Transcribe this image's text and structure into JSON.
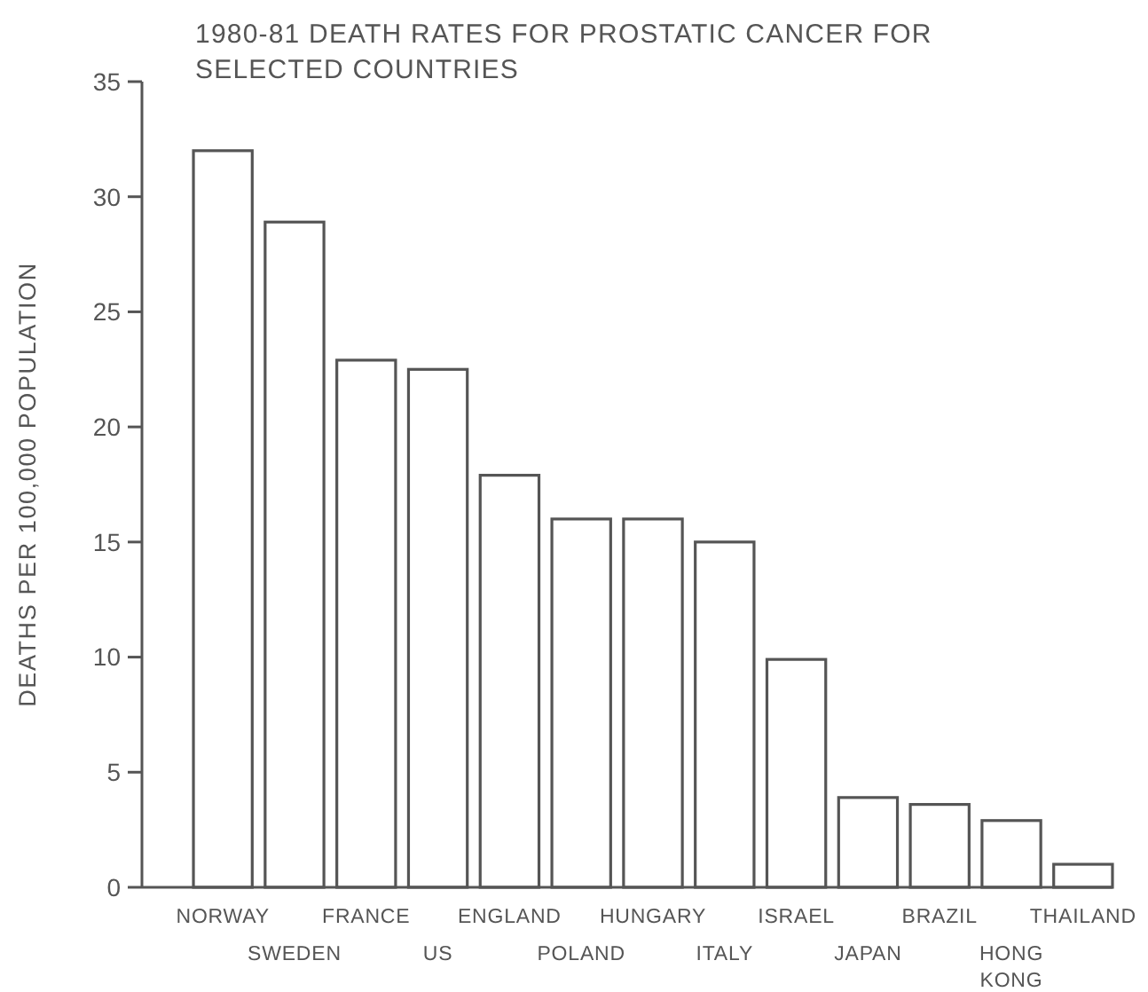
{
  "chart_data": {
    "type": "bar",
    "title": "1980-81 DEATH RATES FOR PROSTATIC CANCER FOR SELECTED COUNTRIES",
    "ylabel": "DEATHS PER 100,000 POPULATION",
    "categories": [
      "NORWAY",
      "SWEDEN",
      "FRANCE",
      "US",
      "ENGLAND",
      "POLAND",
      "HUNGARY",
      "ITALY",
      "ISRAEL",
      "JAPAN",
      "BRAZIL",
      "HONG KONG",
      "THAILAND"
    ],
    "values": [
      32,
      28.9,
      22.9,
      22.5,
      17.9,
      16,
      16,
      15,
      9.9,
      3.9,
      3.6,
      2.9,
      1
    ],
    "color": "#ffffff",
    "ylim": [
      0,
      35
    ],
    "yticks": [
      0,
      5,
      10,
      15,
      20,
      25,
      30,
      35
    ],
    "grid": false
  }
}
